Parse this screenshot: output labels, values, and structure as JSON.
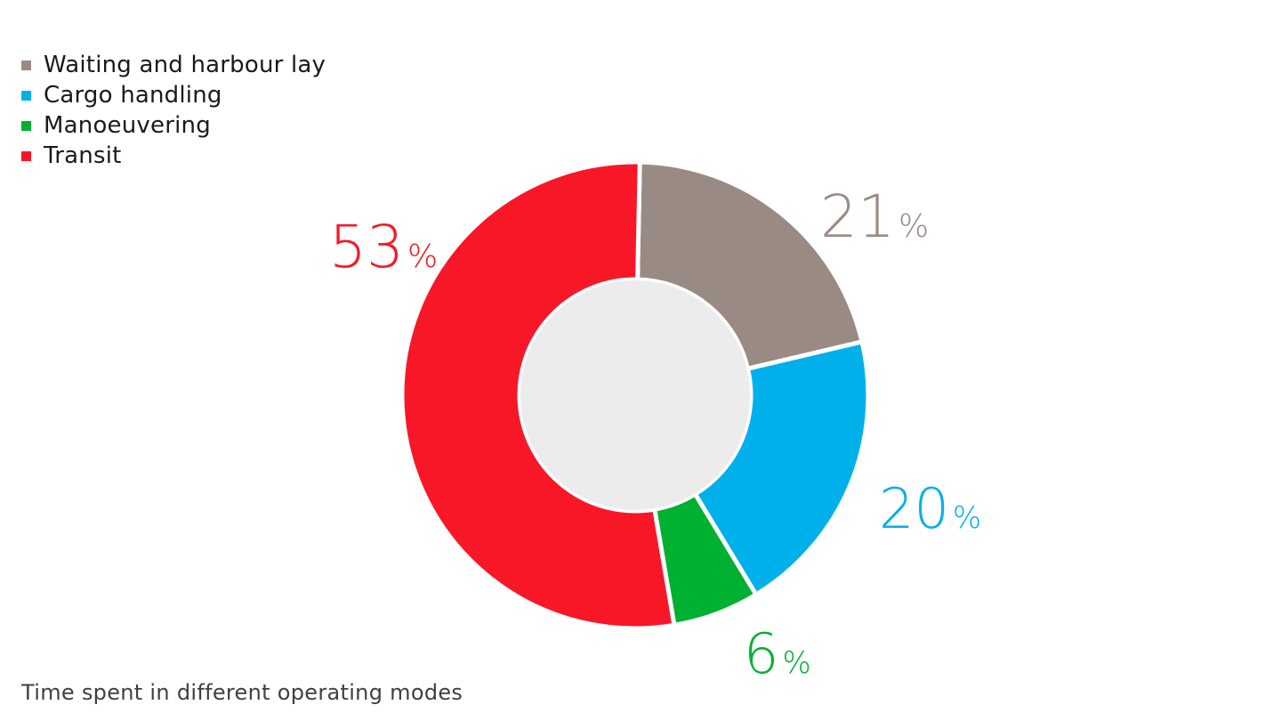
{
  "caption": "Time spent in different operating modes",
  "colors": {
    "hole": "#ececec",
    "separator": "#ffffff"
  },
  "chart_data": {
    "type": "pie",
    "variant": "donut",
    "legend_position": "top-left",
    "unit": "%",
    "series": [
      {
        "name": "Waiting and harbour lay",
        "value": 21,
        "label": "21",
        "color": "#9a8a84"
      },
      {
        "name": "Cargo handling",
        "value": 20,
        "label": "20",
        "color": "#00b0eb"
      },
      {
        "name": "Manoeuvering",
        "value": 6,
        "label": "6",
        "color": "#00b030"
      },
      {
        "name": "Transit",
        "value": 53,
        "label": "53",
        "color": "#f81726"
      }
    ]
  }
}
